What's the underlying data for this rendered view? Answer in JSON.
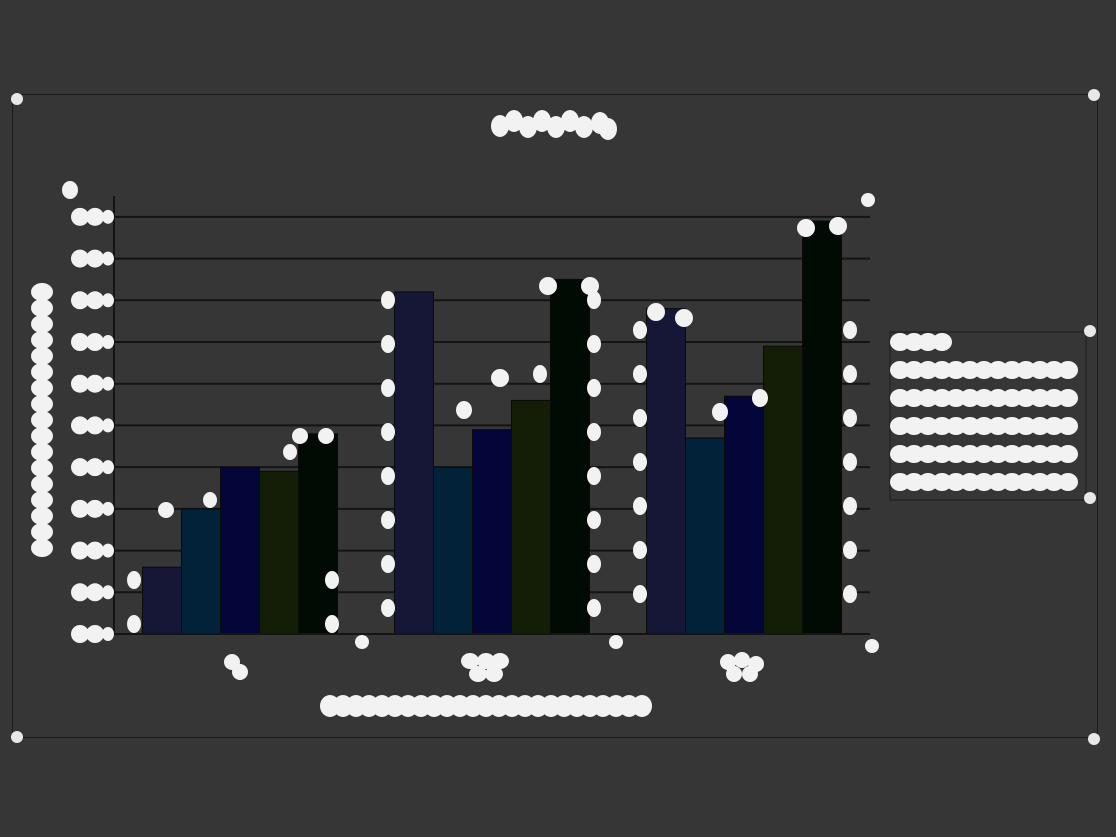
{
  "chart_data": {
    "type": "bar",
    "title": "",
    "xlabel": "",
    "ylabel": "",
    "categories": [
      "",
      "",
      ""
    ],
    "ylim": [
      0,
      10.5
    ],
    "grid": true,
    "legend_position": "right",
    "series": [
      {
        "values": [
          1.6,
          8.2,
          7.8
        ]
      },
      {
        "values": [
          3.0,
          4.0,
          4.7
        ]
      },
      {
        "values": [
          4.0,
          4.9,
          5.7
        ]
      },
      {
        "values": [
          3.9,
          5.6,
          6.9
        ]
      },
      {
        "values": [
          4.8,
          8.5,
          9.9
        ]
      }
    ],
    "colors": [
      "#161636",
      "#02223a",
      "#04063a",
      "#141e06",
      "#020a04"
    ]
  }
}
